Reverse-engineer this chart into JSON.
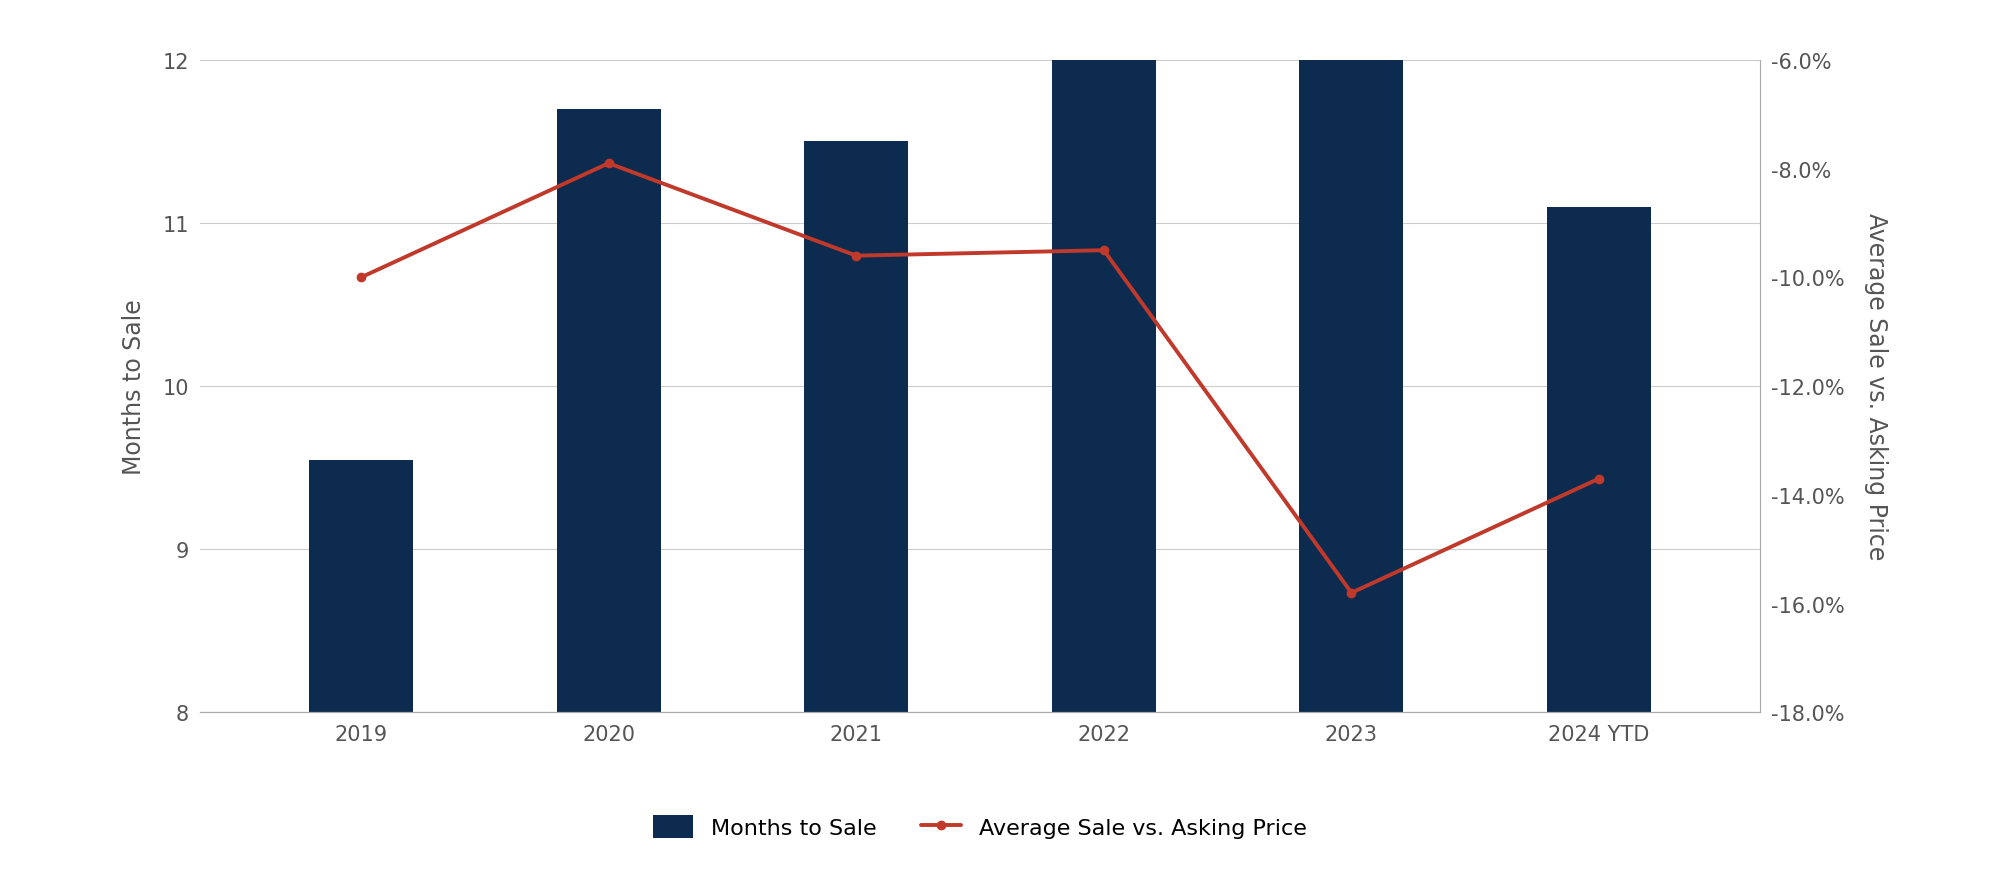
{
  "categories": [
    "2019",
    "2020",
    "2021",
    "2022",
    "2023",
    "2024 YTD"
  ],
  "months_to_sale": [
    9.55,
    11.7,
    11.5,
    12.0,
    12.0,
    11.1
  ],
  "avg_sale_vs_asking": [
    -0.1,
    -0.079,
    -0.096,
    -0.095,
    -0.158,
    -0.137
  ],
  "bar_color": "#0d2b4e",
  "line_color": "#c0392b",
  "left_ylim": [
    8,
    12
  ],
  "left_yticks": [
    8,
    9,
    10,
    11,
    12
  ],
  "right_ylim": [
    -0.18,
    -0.06
  ],
  "right_yticks": [
    -0.18,
    -0.16,
    -0.14,
    -0.12,
    -0.1,
    -0.08,
    -0.06
  ],
  "ylabel_left": "Months to Sale",
  "ylabel_right": "Average Sale vs. Asking Price",
  "legend_bar": "Months to Sale",
  "legend_line": "Average Sale vs. Asking Price",
  "background_color": "#ffffff",
  "grid_color": "#cccccc",
  "bar_width": 0.42,
  "line_width": 2.8,
  "marker": "o",
  "marker_size": 6,
  "axis_label_fontsize": 17,
  "tick_fontsize": 15,
  "legend_fontsize": 16
}
